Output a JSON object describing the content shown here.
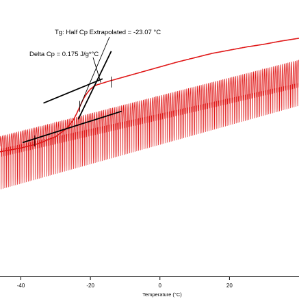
{
  "chart_data": {
    "type": "line",
    "title": "",
    "xlabel": "Temperature (°C)",
    "ylabel": "",
    "xlim": [
      -46,
      40
    ],
    "x_ticks": [
      -40,
      -20,
      0,
      20
    ],
    "x_tick_labels": [
      "-40",
      "-20",
      "0",
      "20"
    ],
    "grid": false,
    "annotations": [
      {
        "id": "tg",
        "text": "Tg: Half Cp Extrapolated = -23.07 °C",
        "x": -23.07
      },
      {
        "id": "delta_cp",
        "text": "Delta Cp = 0.175 J/g*°C"
      }
    ],
    "series": [
      {
        "kind": "reversing",
        "color": "#e01818",
        "x": [
          -46,
          -40,
          -35,
          -30,
          -27,
          -25,
          -24,
          -23,
          -22,
          -21,
          -20,
          -19,
          -18,
          -15,
          -10,
          -5,
          0,
          5,
          10,
          15,
          20,
          25,
          30,
          35,
          40
        ],
        "y": [
          -0.02,
          -0.013,
          -0.005,
          0.008,
          0.022,
          0.038,
          0.05,
          0.064,
          0.078,
          0.088,
          0.096,
          0.101,
          0.104,
          0.11,
          0.119,
          0.128,
          0.137,
          0.146,
          0.154,
          0.162,
          0.168,
          0.174,
          0.179,
          0.185,
          0.19
        ]
      },
      {
        "kind": "modulated",
        "color": "#e01818",
        "modulation_period_c": 0.52,
        "base_x": [
          -46,
          40
        ],
        "base_y": [
          -0.01,
          0.11
        ],
        "envelope_x": [
          -46,
          40
        ],
        "envelope_upper": [
          0.018,
          0.04
        ],
        "envelope_lower": [
          -0.08,
          -0.045
        ]
      }
    ],
    "tangent_lines": [
      {
        "label": "upper-baseline",
        "x": [
          -33.5,
          -16.5
        ],
        "y": [
          0.07,
          0.115
        ]
      },
      {
        "label": "lower-baseline",
        "x": [
          -39.5,
          -11.0
        ],
        "y": [
          -0.003,
          0.055
        ]
      },
      {
        "label": "inflection-tangent",
        "x": [
          -23.5,
          -14.0
        ],
        "y": [
          0.04,
          0.166
        ]
      }
    ],
    "markers": [
      {
        "label": "tg-tick",
        "x": -23.07,
        "y": 0.064
      },
      {
        "label": "onset-tick",
        "x": -36.0,
        "y": 0.0
      },
      {
        "label": "end-tick",
        "x": -14.0,
        "y": 0.109
      }
    ]
  }
}
